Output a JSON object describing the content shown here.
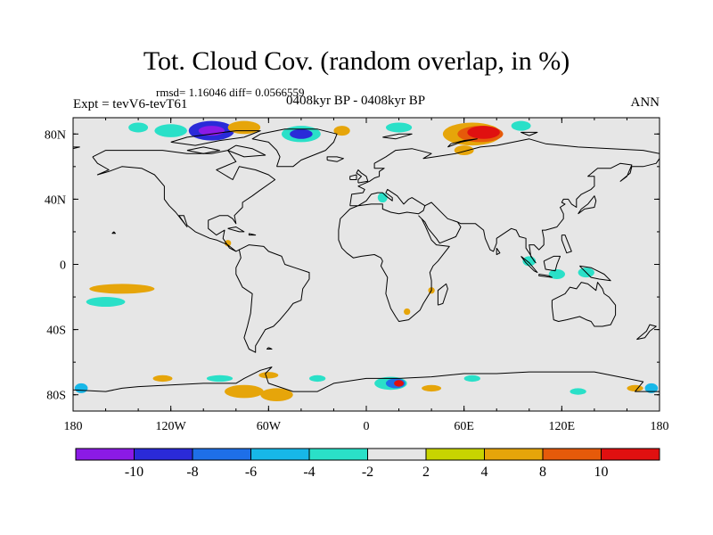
{
  "figure": {
    "title": "Tot. Cloud Cov. (random overlap, in %)",
    "stats": "rmsd= 1.16046 diff= 0.0566559",
    "experiment": "Expt = tevV6-tevT61",
    "period": "0408kyr BP - 0408kyr BP",
    "season": "ANN"
  },
  "chart_data": {
    "type": "heatmap",
    "projection": "cylindrical-equidistant",
    "xlim": [
      -180,
      180
    ],
    "ylim": [
      -90,
      90
    ],
    "x_ticks": [
      {
        "value": -180,
        "label": "180"
      },
      {
        "value": -120,
        "label": "120W"
      },
      {
        "value": -60,
        "label": "60W"
      },
      {
        "value": 0,
        "label": "0"
      },
      {
        "value": 60,
        "label": "60E"
      },
      {
        "value": 120,
        "label": "120E"
      },
      {
        "value": 180,
        "label": "180"
      }
    ],
    "y_ticks": [
      {
        "value": 80,
        "label": "80N"
      },
      {
        "value": 40,
        "label": "40N"
      },
      {
        "value": 0,
        "label": "0"
      },
      {
        "value": -40,
        "label": "40S"
      },
      {
        "value": -80,
        "label": "80S"
      }
    ],
    "colorbar": {
      "bins": [
        {
          "color": "#8b1ae6"
        },
        {
          "color": "#2a2ad8"
        },
        {
          "color": "#1e6fe8"
        },
        {
          "color": "#17b7e8"
        },
        {
          "color": "#2ae0c8"
        },
        {
          "color": "#e6e6e6"
        },
        {
          "color": "#c8d400"
        },
        {
          "color": "#e6a50a"
        },
        {
          "color": "#e65a0a"
        },
        {
          "color": "#e01010"
        }
      ],
      "labels": [
        "-10",
        "-8",
        "-6",
        "-4",
        "-2",
        "2",
        "4",
        "8",
        "10"
      ]
    },
    "anomalies": [
      {
        "lon": -95,
        "lat": 82,
        "rx": 14,
        "ry": 6,
        "level": -10
      },
      {
        "lon": -95,
        "lat": 82,
        "rx": 8,
        "ry": 3,
        "level": -12
      },
      {
        "lon": -120,
        "lat": 82,
        "rx": 10,
        "ry": 4,
        "level": -4
      },
      {
        "lon": -140,
        "lat": 84,
        "rx": 6,
        "ry": 3,
        "level": -4
      },
      {
        "lon": -75,
        "lat": 84,
        "rx": 10,
        "ry": 4,
        "level": 4
      },
      {
        "lon": -40,
        "lat": 80,
        "rx": 12,
        "ry": 5,
        "level": -4
      },
      {
        "lon": -40,
        "lat": 80,
        "rx": 7,
        "ry": 3,
        "level": -10
      },
      {
        "lon": -15,
        "lat": 82,
        "rx": 5,
        "ry": 3,
        "level": 4
      },
      {
        "lon": 20,
        "lat": 84,
        "rx": 8,
        "ry": 3,
        "level": -4
      },
      {
        "lon": 65,
        "lat": 80,
        "rx": 18,
        "ry": 7,
        "level": 4
      },
      {
        "lon": 70,
        "lat": 80,
        "rx": 14,
        "ry": 5,
        "level": 8
      },
      {
        "lon": 72,
        "lat": 81,
        "rx": 10,
        "ry": 4,
        "level": 12
      },
      {
        "lon": 60,
        "lat": 70,
        "rx": 6,
        "ry": 3,
        "level": 4
      },
      {
        "lon": 95,
        "lat": 85,
        "rx": 6,
        "ry": 3,
        "level": -4
      },
      {
        "lon": 10,
        "lat": 41,
        "rx": 3,
        "ry": 3,
        "level": -4
      },
      {
        "lon": -85,
        "lat": 13,
        "rx": 2,
        "ry": 2,
        "level": 4
      },
      {
        "lon": 100,
        "lat": 2,
        "rx": 4,
        "ry": 3,
        "level": -4
      },
      {
        "lon": 117,
        "lat": -6,
        "rx": 5,
        "ry": 3,
        "level": -4
      },
      {
        "lon": 135,
        "lat": -5,
        "rx": 5,
        "ry": 3,
        "level": -4
      },
      {
        "lon": -150,
        "lat": -15,
        "rx": 20,
        "ry": 3,
        "level": 4
      },
      {
        "lon": -160,
        "lat": -23,
        "rx": 12,
        "ry": 3,
        "level": -4
      },
      {
        "lon": 40,
        "lat": -16,
        "rx": 2,
        "ry": 2,
        "level": 4
      },
      {
        "lon": 25,
        "lat": -29,
        "rx": 2,
        "ry": 2,
        "level": 4
      },
      {
        "lon": -75,
        "lat": -78,
        "rx": 12,
        "ry": 4,
        "level": 4
      },
      {
        "lon": -55,
        "lat": -80,
        "rx": 10,
        "ry": 4,
        "level": 4
      },
      {
        "lon": -90,
        "lat": -70,
        "rx": 8,
        "ry": 2,
        "level": -4
      },
      {
        "lon": -60,
        "lat": -68,
        "rx": 6,
        "ry": 2,
        "level": 4
      },
      {
        "lon": 15,
        "lat": -73,
        "rx": 10,
        "ry": 4,
        "level": -4
      },
      {
        "lon": 18,
        "lat": -73,
        "rx": 6,
        "ry": 3,
        "level": -8
      },
      {
        "lon": 20,
        "lat": -73,
        "rx": 3,
        "ry": 2,
        "level": 12
      },
      {
        "lon": 40,
        "lat": -76,
        "rx": 6,
        "ry": 2,
        "level": 4
      },
      {
        "lon": -175,
        "lat": -76,
        "rx": 4,
        "ry": 3,
        "level": -6
      },
      {
        "lon": 175,
        "lat": -76,
        "rx": 4,
        "ry": 3,
        "level": -6
      },
      {
        "lon": 165,
        "lat": -76,
        "rx": 5,
        "ry": 2,
        "level": 4
      },
      {
        "lon": 130,
        "lat": -78,
        "rx": 5,
        "ry": 2,
        "level": -4
      },
      {
        "lon": 65,
        "lat": -70,
        "rx": 5,
        "ry": 2,
        "level": -4
      },
      {
        "lon": -125,
        "lat": -70,
        "rx": 6,
        "ry": 2,
        "level": 4
      },
      {
        "lon": -30,
        "lat": -70,
        "rx": 5,
        "ry": 2,
        "level": -4
      }
    ]
  }
}
